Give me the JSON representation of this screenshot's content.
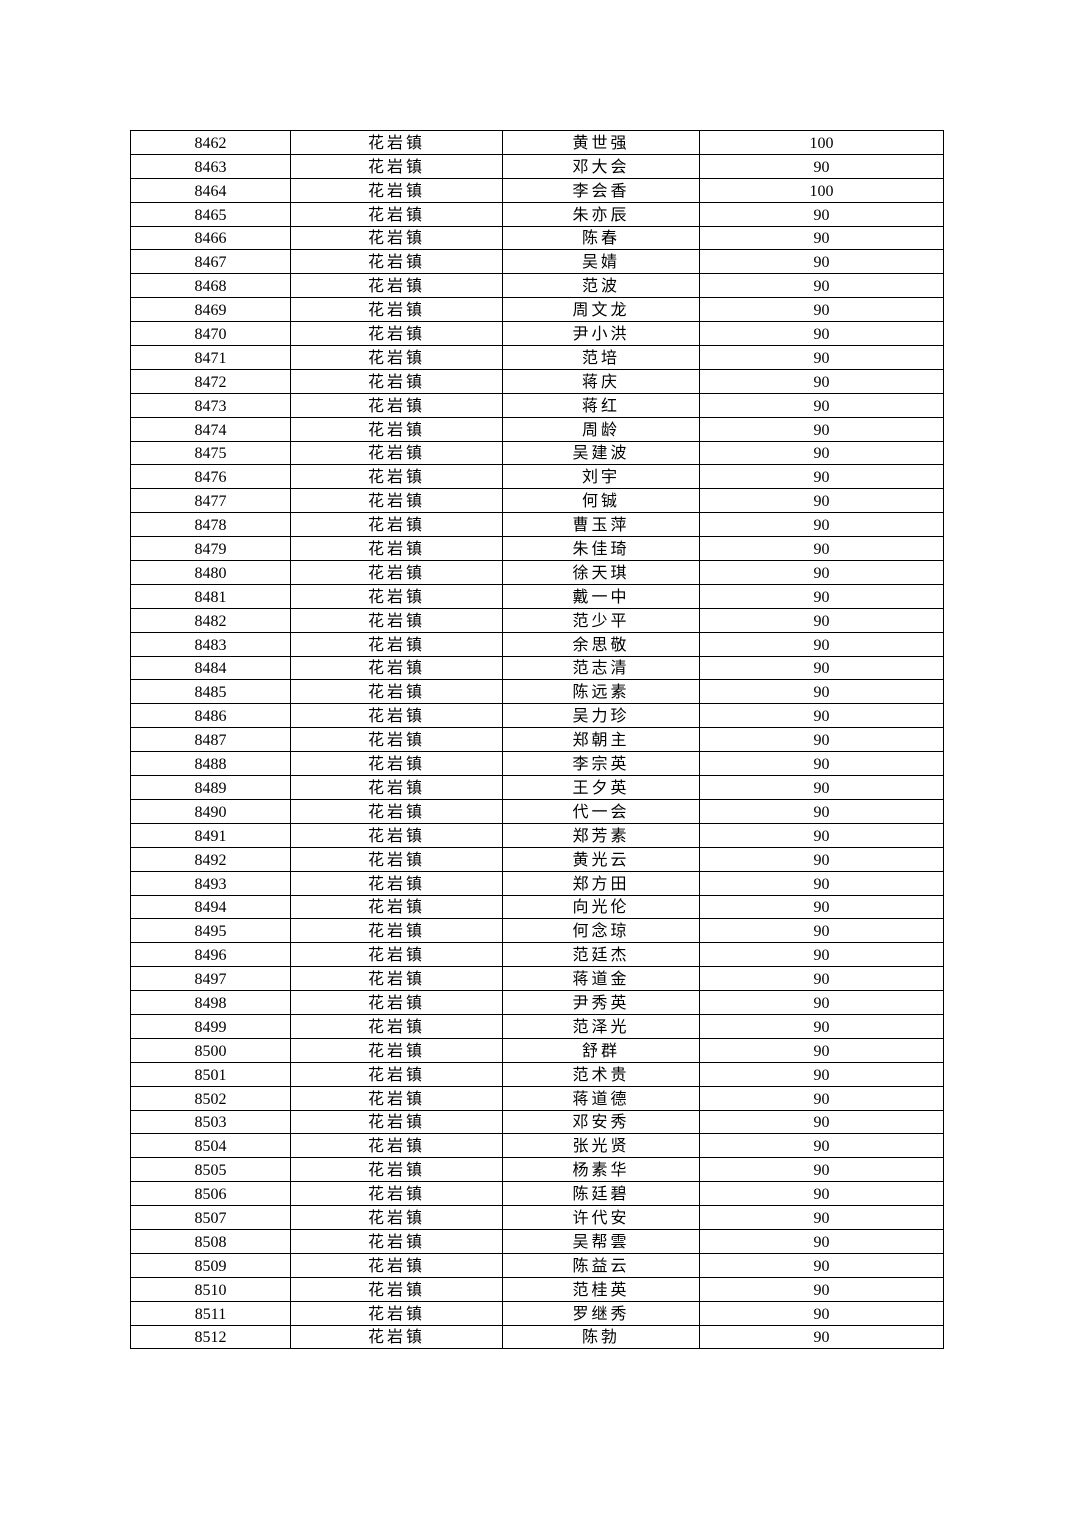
{
  "table": {
    "rows": [
      [
        "8462",
        "花岩镇",
        "黄世强",
        "100"
      ],
      [
        "8463",
        "花岩镇",
        "邓大会",
        "90"
      ],
      [
        "8464",
        "花岩镇",
        "李会香",
        "100"
      ],
      [
        "8465",
        "花岩镇",
        "朱亦辰",
        "90"
      ],
      [
        "8466",
        "花岩镇",
        "陈春",
        "90"
      ],
      [
        "8467",
        "花岩镇",
        "吴婧",
        "90"
      ],
      [
        "8468",
        "花岩镇",
        "范波",
        "90"
      ],
      [
        "8469",
        "花岩镇",
        "周文龙",
        "90"
      ],
      [
        "8470",
        "花岩镇",
        "尹小洪",
        "90"
      ],
      [
        "8471",
        "花岩镇",
        "范培",
        "90"
      ],
      [
        "8472",
        "花岩镇",
        "蒋庆",
        "90"
      ],
      [
        "8473",
        "花岩镇",
        "蒋红",
        "90"
      ],
      [
        "8474",
        "花岩镇",
        "周龄",
        "90"
      ],
      [
        "8475",
        "花岩镇",
        "吴建波",
        "90"
      ],
      [
        "8476",
        "花岩镇",
        "刘宇",
        "90"
      ],
      [
        "8477",
        "花岩镇",
        "何铖",
        "90"
      ],
      [
        "8478",
        "花岩镇",
        "曹玉萍",
        "90"
      ],
      [
        "8479",
        "花岩镇",
        "朱佳琦",
        "90"
      ],
      [
        "8480",
        "花岩镇",
        "徐天琪",
        "90"
      ],
      [
        "8481",
        "花岩镇",
        "戴一中",
        "90"
      ],
      [
        "8482",
        "花岩镇",
        "范少平",
        "90"
      ],
      [
        "8483",
        "花岩镇",
        "余思敬",
        "90"
      ],
      [
        "8484",
        "花岩镇",
        "范志清",
        "90"
      ],
      [
        "8485",
        "花岩镇",
        "陈远素",
        "90"
      ],
      [
        "8486",
        "花岩镇",
        "吴力珍",
        "90"
      ],
      [
        "8487",
        "花岩镇",
        "郑朝主",
        "90"
      ],
      [
        "8488",
        "花岩镇",
        "李宗英",
        "90"
      ],
      [
        "8489",
        "花岩镇",
        "王夕英",
        "90"
      ],
      [
        "8490",
        "花岩镇",
        "代一会",
        "90"
      ],
      [
        "8491",
        "花岩镇",
        "郑芳素",
        "90"
      ],
      [
        "8492",
        "花岩镇",
        "黄光云",
        "90"
      ],
      [
        "8493",
        "花岩镇",
        "郑方田",
        "90"
      ],
      [
        "8494",
        "花岩镇",
        "向光伦",
        "90"
      ],
      [
        "8495",
        "花岩镇",
        "何念琼",
        "90"
      ],
      [
        "8496",
        "花岩镇",
        "范廷杰",
        "90"
      ],
      [
        "8497",
        "花岩镇",
        "蒋道金",
        "90"
      ],
      [
        "8498",
        "花岩镇",
        "尹秀英",
        "90"
      ],
      [
        "8499",
        "花岩镇",
        "范泽光",
        "90"
      ],
      [
        "8500",
        "花岩镇",
        "舒群",
        "90"
      ],
      [
        "8501",
        "花岩镇",
        "范术贵",
        "90"
      ],
      [
        "8502",
        "花岩镇",
        "蒋道德",
        "90"
      ],
      [
        "8503",
        "花岩镇",
        "邓安秀",
        "90"
      ],
      [
        "8504",
        "花岩镇",
        "张光贤",
        "90"
      ],
      [
        "8505",
        "花岩镇",
        "杨素华",
        "90"
      ],
      [
        "8506",
        "花岩镇",
        "陈廷碧",
        "90"
      ],
      [
        "8507",
        "花岩镇",
        "许代安",
        "90"
      ],
      [
        "8508",
        "花岩镇",
        "吴帮雲",
        "90"
      ],
      [
        "8509",
        "花岩镇",
        "陈益云",
        "90"
      ],
      [
        "8510",
        "花岩镇",
        "范桂英",
        "90"
      ],
      [
        "8511",
        "花岩镇",
        "罗继秀",
        "90"
      ],
      [
        "8512",
        "花岩镇",
        "陈勃",
        "90"
      ]
    ]
  }
}
